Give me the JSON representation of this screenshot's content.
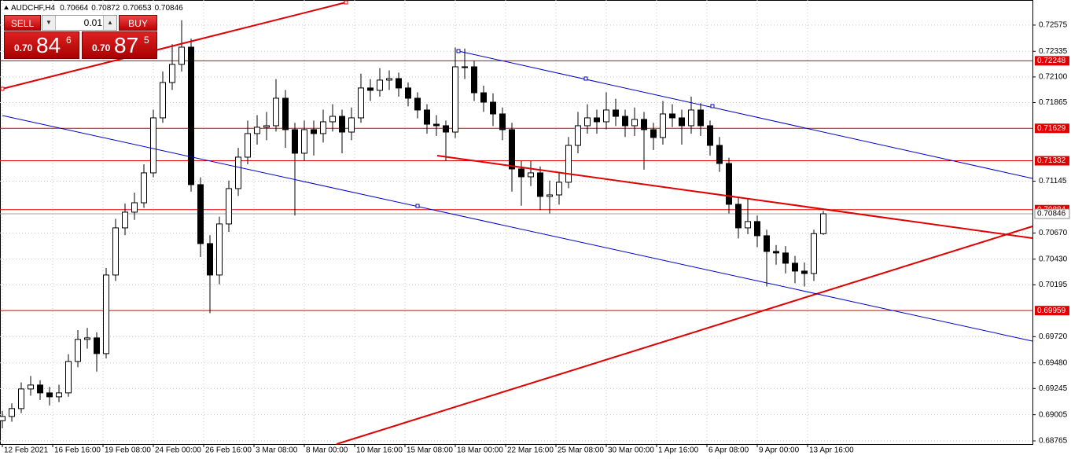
{
  "chart_data": {
    "type": "candlestick",
    "symbol": "AUDCHF,H4",
    "xlim": [
      -0.75,
      327.5
    ],
    "ylim": [
      0.68736,
      0.72805
    ],
    "grid": true,
    "grid_color": "#c8c8c8",
    "up_color": "#ffffff",
    "down_color": "#000000",
    "wick_color": "#000000",
    "level_color": "#e00000",
    "xticks": [
      {
        "value": 0,
        "label": "12 Feb 2021"
      },
      {
        "value": 16,
        "label": "16 Feb 16:00"
      },
      {
        "value": 32,
        "label": "19 Feb 08:00"
      },
      {
        "value": 48,
        "label": "24 Feb 00:00"
      },
      {
        "value": 64,
        "label": "26 Feb 16:00"
      },
      {
        "value": 80,
        "label": "3 Mar 08:00"
      },
      {
        "value": 96,
        "label": "8 Mar 00:00"
      },
      {
        "value": 112,
        "label": "10 Mar 16:00"
      },
      {
        "value": 128,
        "label": "15 Mar 08:00"
      },
      {
        "value": 144,
        "label": "18 Mar 00:00"
      },
      {
        "value": 160,
        "label": "22 Mar 16:00"
      },
      {
        "value": 176,
        "label": "25 Mar 08:00"
      },
      {
        "value": 192,
        "label": "30 Mar 00:00"
      },
      {
        "value": 208,
        "label": "1 Apr 16:00"
      },
      {
        "value": 224,
        "label": "6 Apr 08:00"
      },
      {
        "value": 240,
        "label": "9 Apr 00:00"
      },
      {
        "value": 256,
        "label": "13 Apr 16:00"
      }
    ],
    "yticks": [
      0.72575,
      0.72335,
      {
        "value": 0.721,
        "label": "0.72100"
      },
      0.71865,
      0.71145,
      {
        "value": 0.7067,
        "label": "0.70670"
      },
      {
        "value": 0.7043,
        "label": "0.70430"
      },
      0.70195,
      {
        "value": 0.6972,
        "label": "0.69720"
      },
      {
        "value": 0.6948,
        "label": "0.69480"
      },
      0.69245,
      0.69005,
      0.68765
    ],
    "levels": [
      0.72248,
      0.71629,
      0.71332,
      0.70884,
      0.69959
    ],
    "candles": {
      "x": [
        0,
        3,
        6,
        9,
        12,
        15,
        18,
        21,
        24,
        27,
        30,
        33,
        36,
        39,
        42,
        45,
        48,
        51,
        54,
        57,
        60,
        63,
        66,
        69,
        72,
        75,
        78,
        81,
        84,
        87,
        90,
        93,
        96,
        99,
        102,
        105,
        108,
        111,
        114,
        117,
        120,
        123,
        126,
        129,
        132,
        135,
        138,
        141,
        144,
        147,
        150,
        153,
        156,
        159,
        162,
        165,
        168,
        171,
        174,
        177,
        180,
        183,
        186,
        189,
        192,
        195,
        198,
        201,
        204,
        207,
        210,
        213,
        216,
        219,
        222,
        225,
        228,
        231,
        234,
        237,
        240,
        243,
        246,
        249,
        252,
        255,
        258,
        261
      ],
      "open": [
        0.6895,
        0.68989,
        0.69061,
        0.69241,
        0.69277,
        0.69205,
        0.69169,
        0.69205,
        0.69493,
        0.69695,
        0.69709,
        0.69565,
        0.70285,
        0.70717,
        0.70861,
        0.70947,
        0.71221,
        0.71725,
        0.72049,
        0.72215,
        0.72373,
        0.71113,
        0.70573,
        0.70285,
        0.70753,
        0.71077,
        0.71365,
        0.71581,
        0.71639,
        0.71653,
        0.71905,
        0.71617,
        0.71401,
        0.71617,
        0.71581,
        0.71689,
        0.71739,
        0.71595,
        0.71725,
        0.71999,
        0.71977,
        0.72071,
        0.72085,
        0.71999,
        0.71905,
        0.71797,
        0.71667,
        0.71653,
        0.71595,
        0.72193,
        0.72193,
        0.71955,
        0.71869,
        0.71761,
        0.71617,
        0.71257,
        0.71185,
        0.71221,
        0.71005,
        0.71019,
        0.71135,
        0.71473,
        0.71653,
        0.71725,
        0.71689,
        0.71797,
        0.71739,
        0.71653,
        0.71711,
        0.71617,
        0.71545,
        0.71761,
        0.71725,
        0.71653,
        0.71797,
        0.71653,
        0.71473,
        0.71307,
        0.70933,
        0.70717,
        0.70775,
        0.70645,
        0.70501,
        0.70487,
        0.70393,
        0.70321,
        0.70299,
        0.70664
      ],
      "high": [
        0.6904,
        0.6911,
        0.693,
        0.6936,
        0.6932,
        0.6926,
        0.6928,
        0.6956,
        0.6978,
        0.698,
        0.6976,
        0.7035,
        0.708,
        0.7094,
        0.7104,
        0.713,
        0.718,
        0.7215,
        0.724,
        0.7262,
        0.7245,
        0.7118,
        0.7065,
        0.7082,
        0.7115,
        0.7145,
        0.717,
        0.7175,
        0.7178,
        0.7208,
        0.7198,
        0.7168,
        0.717,
        0.717,
        0.718,
        0.7185,
        0.718,
        0.7182,
        0.7213,
        0.7208,
        0.7218,
        0.7216,
        0.7214,
        0.7205,
        0.7196,
        0.7185,
        0.7175,
        0.717,
        0.7237,
        0.7236,
        0.7225,
        0.7202,
        0.7195,
        0.7182,
        0.7168,
        0.7133,
        0.7133,
        0.7128,
        0.7115,
        0.7123,
        0.7155,
        0.7178,
        0.7185,
        0.718,
        0.7196,
        0.719,
        0.718,
        0.7182,
        0.7178,
        0.7168,
        0.7188,
        0.7185,
        0.718,
        0.7192,
        0.7186,
        0.717,
        0.7155,
        0.7136,
        0.71,
        0.7098,
        0.7083,
        0.707,
        0.7056,
        0.7055,
        0.7046,
        0.704,
        0.707,
        0.70872
      ],
      "low": [
        0.6888,
        0.6894,
        0.6902,
        0.6918,
        0.6914,
        0.6909,
        0.6912,
        0.6917,
        0.6944,
        0.6961,
        0.694,
        0.6952,
        0.7023,
        0.7065,
        0.7079,
        0.709,
        0.7118,
        0.7168,
        0.7198,
        0.7215,
        0.7105,
        0.7045,
        0.69935,
        0.702,
        0.7068,
        0.7101,
        0.713,
        0.7148,
        0.7152,
        0.716,
        0.7145,
        0.7083,
        0.7133,
        0.7138,
        0.715,
        0.716,
        0.714,
        0.7152,
        0.7168,
        0.7188,
        0.7192,
        0.7198,
        0.7192,
        0.7183,
        0.7172,
        0.7158,
        0.7156,
        0.7133,
        0.7154,
        0.7208,
        0.7188,
        0.7178,
        0.7165,
        0.7152,
        0.7105,
        0.7092,
        0.711,
        0.7088,
        0.7085,
        0.7093,
        0.7108,
        0.714,
        0.7158,
        0.7158,
        0.7162,
        0.7165,
        0.7155,
        0.7156,
        0.7125,
        0.7143,
        0.7148,
        0.7164,
        0.7148,
        0.7158,
        0.7156,
        0.7138,
        0.7123,
        0.7085,
        0.7062,
        0.7066,
        0.7054,
        0.7018,
        0.7038,
        0.703,
        0.7021,
        0.7018,
        0.7023,
        0.70653
      ],
      "close": [
        0.68989,
        0.69061,
        0.69241,
        0.69277,
        0.69205,
        0.69169,
        0.69205,
        0.69493,
        0.69695,
        0.69709,
        0.69565,
        0.70285,
        0.70717,
        0.70861,
        0.70947,
        0.71221,
        0.71725,
        0.72049,
        0.72215,
        0.72373,
        0.71113,
        0.70573,
        0.70285,
        0.70753,
        0.71077,
        0.71365,
        0.71581,
        0.71639,
        0.71653,
        0.71905,
        0.71617,
        0.71401,
        0.71617,
        0.71581,
        0.71689,
        0.71739,
        0.71595,
        0.71725,
        0.71999,
        0.71977,
        0.72071,
        0.72085,
        0.71999,
        0.71905,
        0.71797,
        0.71667,
        0.71653,
        0.71595,
        0.72193,
        0.72193,
        0.71955,
        0.71869,
        0.71761,
        0.71617,
        0.71257,
        0.71185,
        0.71221,
        0.71005,
        0.71019,
        0.71135,
        0.71473,
        0.71653,
        0.71725,
        0.71689,
        0.71797,
        0.71739,
        0.71653,
        0.71711,
        0.71617,
        0.71545,
        0.71761,
        0.71725,
        0.71653,
        0.71797,
        0.71653,
        0.71473,
        0.71307,
        0.70933,
        0.70717,
        0.70775,
        0.70645,
        0.70501,
        0.70487,
        0.70393,
        0.70321,
        0.70299,
        0.70664,
        0.70846
      ]
    }
  },
  "trade_panel": {
    "sell": "SELL",
    "buy": "BUY",
    "lot": "0.01",
    "bid_big": "0.70",
    "bid_pips": "84",
    "bid_frac": "6",
    "ask_big": "0.70",
    "ask_pips": "87",
    "ask_frac": "5"
  }
}
